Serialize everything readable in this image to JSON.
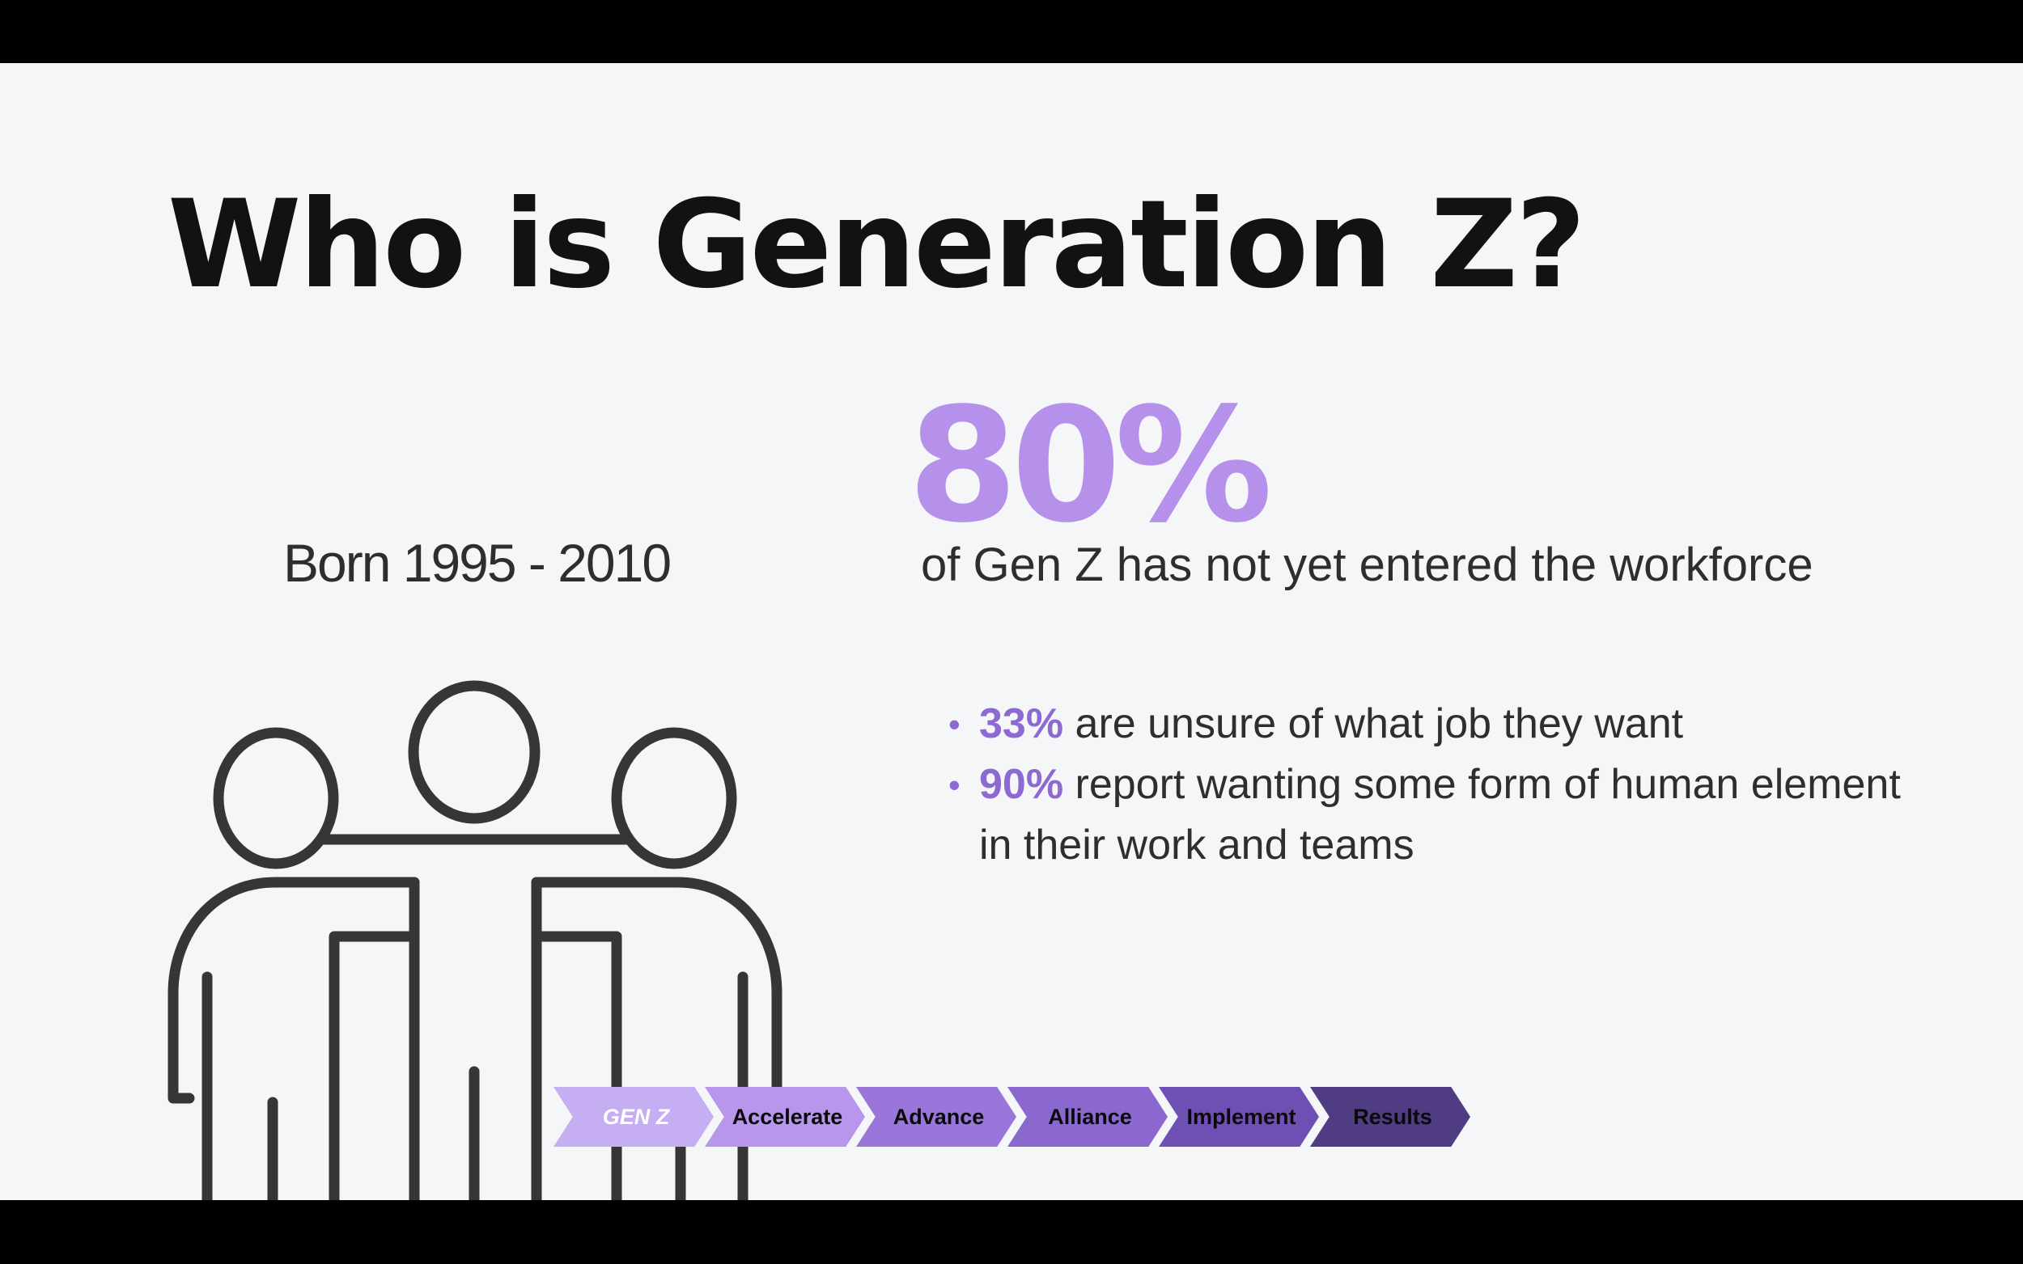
{
  "slide": {
    "title": "Who is Generation Z?",
    "born_label": "Born 1995 - 2010",
    "illustration_icon": "group-of-people-icon",
    "stat": {
      "value": "80%",
      "description": "of Gen Z has not yet entered the workforce"
    },
    "bullets": [
      {
        "percent": "33%",
        "text": " are unsure of what job they want"
      },
      {
        "percent": "90%",
        "text": " report wanting some form of human element in their work and teams"
      }
    ]
  },
  "process_steps": [
    {
      "label": "GEN Z",
      "color": "#c5aef1",
      "active": true
    },
    {
      "label": "Accelerate",
      "color": "#b896ec"
    },
    {
      "label": "Advance",
      "color": "#9a76db"
    },
    {
      "label": "Alliance",
      "color": "#8b68d0"
    },
    {
      "label": "Implement",
      "color": "#6e4fb4"
    },
    {
      "label": "Results",
      "color": "#4f3c82"
    }
  ],
  "colors": {
    "accent": "#b591ec",
    "accent_dark": "#8c6ad2",
    "text": "#2e2e2e",
    "background": "#f4f6f8"
  }
}
